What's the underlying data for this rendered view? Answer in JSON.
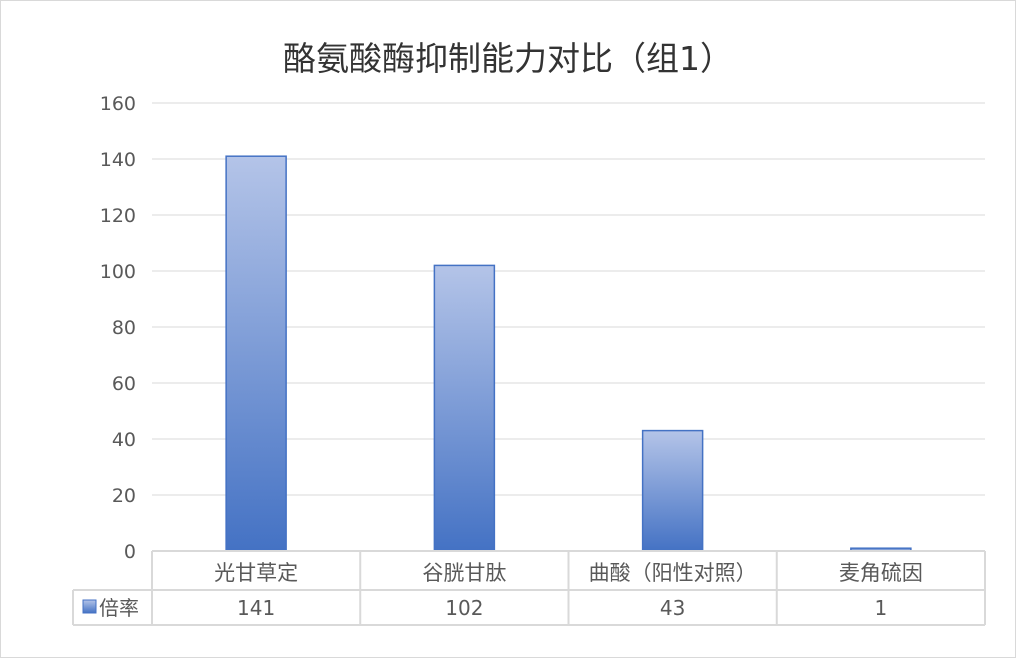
{
  "chart_data": {
    "type": "bar",
    "title": "酪氨酸酶抑制能力对比（组1）",
    "categories": [
      "光甘草定",
      "谷胱甘肽",
      "曲酸（阳性对照）",
      "麦角硫因"
    ],
    "series": [
      {
        "name": "倍率",
        "values": [
          141,
          102,
          43,
          1
        ]
      }
    ],
    "ylim": [
      0,
      160
    ],
    "yticks": [
      0,
      20,
      40,
      60,
      80,
      100,
      120,
      140,
      160
    ],
    "grid": true,
    "legend": "data-table-left",
    "data_table": true,
    "colors": {
      "bar_top": "#b4c4e8",
      "bar_bottom": "#4472c4",
      "bar_edge": "#4472c4",
      "grid": "#d9d9d9",
      "text": "#595959"
    }
  }
}
